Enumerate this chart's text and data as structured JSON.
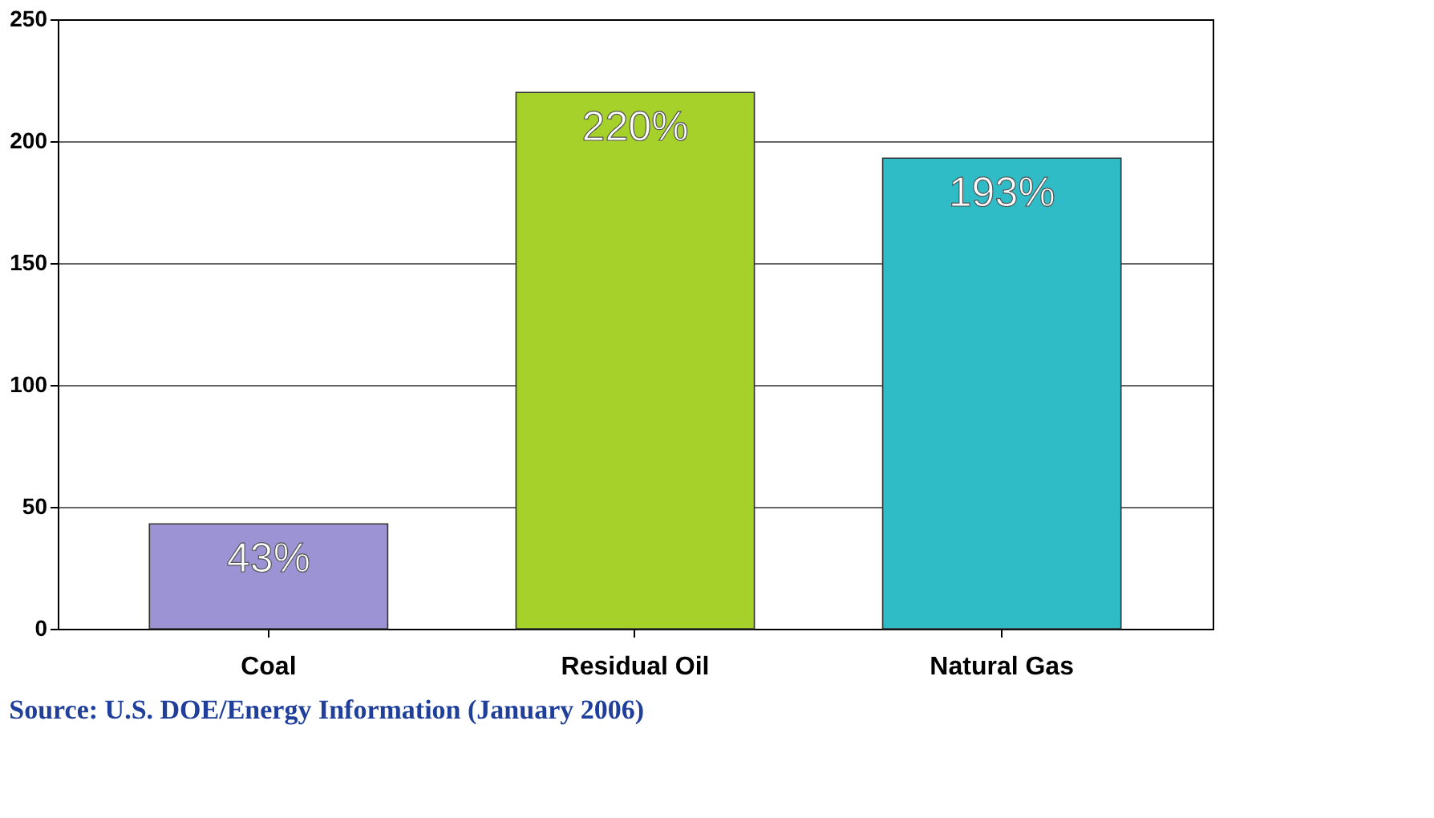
{
  "chart_data": {
    "type": "bar",
    "categories": [
      "Coal",
      "Residual Oil",
      "Natural Gas"
    ],
    "values": [
      43,
      220,
      193
    ],
    "colors": [
      "#9b93d3",
      "#a6d12a",
      "#2fbcc6"
    ],
    "value_labels": [
      "43%",
      "220%",
      "193%"
    ],
    "ylim": [
      0,
      250
    ],
    "yticks": [
      0,
      50,
      100,
      150,
      200,
      250
    ],
    "grid": "y",
    "annotations": [
      "Source:    U.S. DOE/Energy Information  (January 2006)"
    ]
  }
}
